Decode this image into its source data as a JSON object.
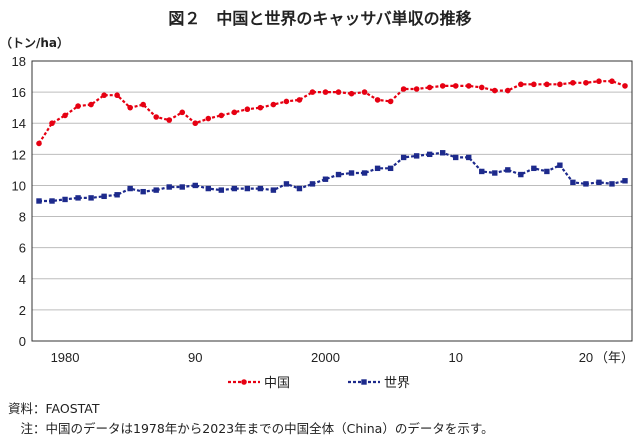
{
  "chart_data": {
    "type": "line",
    "title": "図２　中国と世界のキャッサバ単収の推移",
    "y_unit": "（トン/ha）",
    "x_unit": "（年）",
    "ylim": [
      0,
      18
    ],
    "yticks": [
      "0",
      "2",
      "4",
      "6",
      "8",
      "10",
      "12",
      "14",
      "16",
      "18"
    ],
    "xlim": [
      1978,
      2023
    ],
    "xticks": [
      {
        "x": 1980,
        "label": "1980"
      },
      {
        "x": 1990,
        "label": "90"
      },
      {
        "x": 2000,
        "label": "2000"
      },
      {
        "x": 2010,
        "label": "10"
      },
      {
        "x": 2020,
        "label": "20"
      }
    ],
    "grid": "horizontal",
    "legend_position": "bottom",
    "x": [
      1978,
      1979,
      1980,
      1981,
      1982,
      1983,
      1984,
      1985,
      1986,
      1987,
      1988,
      1989,
      1990,
      1991,
      1992,
      1993,
      1994,
      1995,
      1996,
      1997,
      1998,
      1999,
      2000,
      2001,
      2002,
      2003,
      2004,
      2005,
      2006,
      2007,
      2008,
      2009,
      2010,
      2011,
      2012,
      2013,
      2014,
      2015,
      2016,
      2017,
      2018,
      2019,
      2020,
      2021,
      2022,
      2023
    ],
    "series": [
      {
        "name": "中国",
        "color": "#e60012",
        "marker": "circle",
        "values": [
          12.7,
          14.0,
          14.5,
          15.1,
          15.2,
          15.8,
          15.8,
          15.0,
          15.2,
          14.4,
          14.2,
          14.7,
          14.0,
          14.3,
          14.5,
          14.7,
          14.9,
          15.0,
          15.2,
          15.4,
          15.5,
          16.0,
          16.0,
          16.0,
          15.9,
          16.0,
          15.5,
          15.4,
          16.2,
          16.2,
          16.3,
          16.4,
          16.4,
          16.4,
          16.3,
          16.1,
          16.1,
          16.5,
          16.5,
          16.5,
          16.5,
          16.6,
          16.6,
          16.7,
          16.7,
          16.4
        ]
      },
      {
        "name": "世界",
        "color": "#1d2a8c",
        "marker": "square",
        "values": [
          9.0,
          9.0,
          9.1,
          9.2,
          9.2,
          9.3,
          9.4,
          9.8,
          9.6,
          9.7,
          9.9,
          9.9,
          10.0,
          9.8,
          9.7,
          9.8,
          9.8,
          9.8,
          9.7,
          10.1,
          9.8,
          10.1,
          10.4,
          10.7,
          10.8,
          10.8,
          11.1,
          11.1,
          11.8,
          11.9,
          12.0,
          12.1,
          11.8,
          11.8,
          10.9,
          10.8,
          11.0,
          10.7,
          11.1,
          10.9,
          11.3,
          10.2,
          10.1,
          10.2,
          10.1,
          10.3
        ]
      }
    ]
  },
  "footnotes": {
    "source": "資料：FAOSTAT",
    "note": "　注：中国のデータは1978年から2023年までの中国全体（China）のデータを示す。"
  }
}
